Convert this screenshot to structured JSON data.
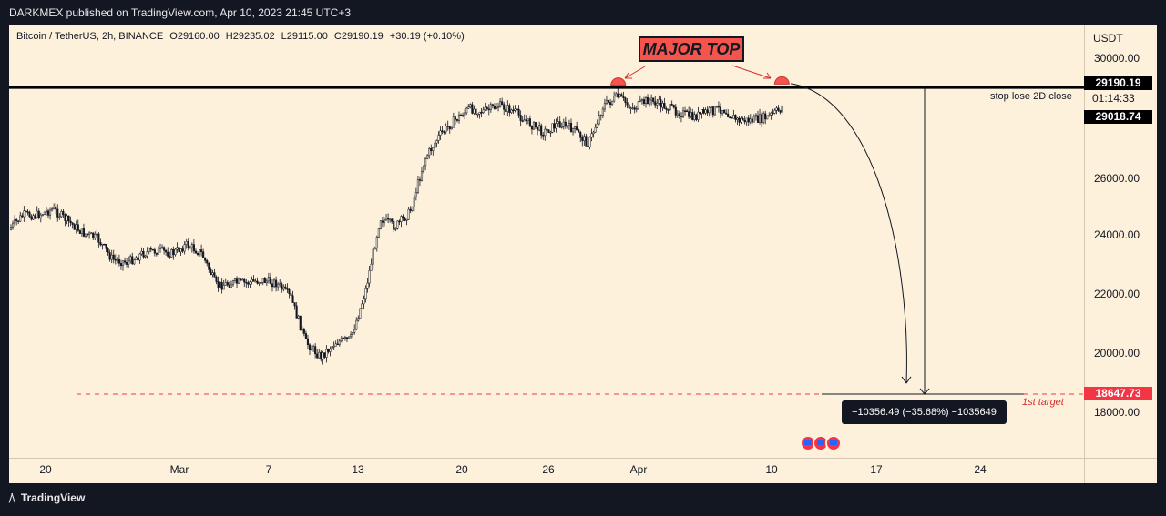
{
  "header": {
    "published": "DARKMEX published on TradingView.com, Apr 10, 2023 21:45 UTC+3"
  },
  "legend": {
    "symbol": "Bitcoin / TetherUS, 2h, BINANCE",
    "open": "O29160.00",
    "high": "H29235.02",
    "low": "L29115.00",
    "close": "C29190.19",
    "change": "+30.19 (+0.10%)"
  },
  "axis": {
    "currency": "USDT",
    "y_ticks": [
      "30000.00",
      "26000.00",
      "24000.00",
      "22000.00",
      "20000.00",
      "18000.00"
    ],
    "x_ticks": [
      "20",
      "Mar",
      "7",
      "13",
      "20",
      "26",
      "Apr",
      "10",
      "17",
      "24"
    ]
  },
  "price_tags": {
    "last": "29190.19",
    "countdown": "01:14:33",
    "level": "29018.74",
    "target": "18647.73"
  },
  "annotations": {
    "major_top": "MAJOR TOP",
    "stop_loss": "stop lose 2D close",
    "first_target": "1st target",
    "measure": "−10356.49 (−35.68%) −1035649"
  },
  "footer": {
    "brand": "TradingView"
  },
  "colors": {
    "background": "#fdf1dc",
    "candle": "#131722",
    "resistance_line": "#000000",
    "target_line": "#f23645",
    "top_marker": "#f5544c"
  },
  "chart_data": {
    "type": "candlestick",
    "title": "Bitcoin / TetherUS, 2h, BINANCE",
    "ylabel": "USDT",
    "ylim": [
      16300,
      31000
    ],
    "x_categories": [
      "20",
      "Mar",
      "7",
      "13",
      "20",
      "26",
      "Apr",
      "10",
      "17",
      "24"
    ],
    "price_path": [
      {
        "date": "2023-02-17",
        "price": 24200
      },
      {
        "date": "2023-02-18",
        "price": 24700
      },
      {
        "date": "2023-02-19",
        "price": 24700
      },
      {
        "date": "2023-02-20",
        "price": 24900
      },
      {
        "date": "2023-02-21",
        "price": 24500
      },
      {
        "date": "2023-02-22",
        "price": 24100
      },
      {
        "date": "2023-02-23",
        "price": 23900
      },
      {
        "date": "2023-02-24",
        "price": 23200
      },
      {
        "date": "2023-02-25",
        "price": 23100
      },
      {
        "date": "2023-02-26",
        "price": 23400
      },
      {
        "date": "2023-02-27",
        "price": 23500
      },
      {
        "date": "2023-02-28",
        "price": 23400
      },
      {
        "date": "2023-03-01",
        "price": 23700
      },
      {
        "date": "2023-03-02",
        "price": 23400
      },
      {
        "date": "2023-03-03",
        "price": 22300
      },
      {
        "date": "2023-03-04",
        "price": 22400
      },
      {
        "date": "2023-03-05",
        "price": 22400
      },
      {
        "date": "2023-03-06",
        "price": 22500
      },
      {
        "date": "2023-03-07",
        "price": 22400
      },
      {
        "date": "2023-03-08",
        "price": 21900
      },
      {
        "date": "2023-03-09",
        "price": 20400
      },
      {
        "date": "2023-03-10",
        "price": 19900
      },
      {
        "date": "2023-03-11",
        "price": 20400
      },
      {
        "date": "2023-03-12",
        "price": 20500
      },
      {
        "date": "2023-03-13",
        "price": 22100
      },
      {
        "date": "2023-03-14",
        "price": 24600
      },
      {
        "date": "2023-03-15",
        "price": 24300
      },
      {
        "date": "2023-03-16",
        "price": 24800
      },
      {
        "date": "2023-03-17",
        "price": 26600
      },
      {
        "date": "2023-03-18",
        "price": 27400
      },
      {
        "date": "2023-03-19",
        "price": 27900
      },
      {
        "date": "2023-03-20",
        "price": 28300
      },
      {
        "date": "2023-03-21",
        "price": 28200
      },
      {
        "date": "2023-03-22",
        "price": 28400
      },
      {
        "date": "2023-03-23",
        "price": 28200
      },
      {
        "date": "2023-03-24",
        "price": 27800
      },
      {
        "date": "2023-03-25",
        "price": 27500
      },
      {
        "date": "2023-03-26",
        "price": 27800
      },
      {
        "date": "2023-03-27",
        "price": 27600
      },
      {
        "date": "2023-03-28",
        "price": 27100
      },
      {
        "date": "2023-03-29",
        "price": 28400
      },
      {
        "date": "2023-03-30",
        "price": 28700
      },
      {
        "date": "2023-03-31",
        "price": 28300
      },
      {
        "date": "2023-04-01",
        "price": 28600
      },
      {
        "date": "2023-04-02",
        "price": 28400
      },
      {
        "date": "2023-04-03",
        "price": 28200
      },
      {
        "date": "2023-04-04",
        "price": 28000
      },
      {
        "date": "2023-04-05",
        "price": 28200
      },
      {
        "date": "2023-04-06",
        "price": 28300
      },
      {
        "date": "2023-04-07",
        "price": 27900
      },
      {
        "date": "2023-04-08",
        "price": 27900
      },
      {
        "date": "2023-04-09",
        "price": 28000
      },
      {
        "date": "2023-04-10",
        "price": 28300
      },
      {
        "date": "2023-04-10 20:00",
        "price": 29190
      }
    ],
    "lines": {
      "resistance": 29018.74,
      "first_target": 18647.73
    },
    "major_top_markers": [
      {
        "date": "2023-03-30",
        "price": 29150
      },
      {
        "date": "2023-04-10",
        "price": 29190
      }
    ]
  }
}
